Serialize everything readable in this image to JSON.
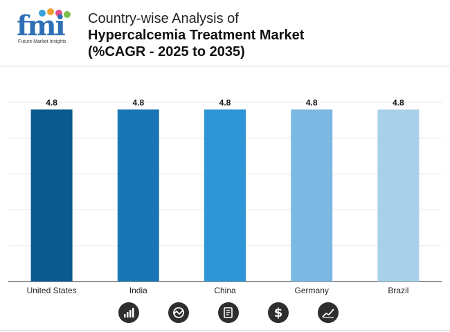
{
  "brand": {
    "logo_text": "fmi",
    "tagline": "Future Market Insights",
    "dot_colors": [
      "#3aa0d8",
      "#f0a030",
      "#e0508a",
      "#7cc04a"
    ]
  },
  "header": {
    "line1": "Country-wise Analysis of",
    "line2": "Hypercalcemia Treatment Market",
    "line3": "(%CAGR - 2025 to 2035)"
  },
  "chart_data": {
    "type": "bar",
    "title": "Country-wise Analysis of Hypercalcemia Treatment Market (%CAGR - 2025 to 2035)",
    "categories": [
      "United States",
      "India",
      "China",
      "Germany",
      "Brazil"
    ],
    "values": [
      4.8,
      4.8,
      4.8,
      4.8,
      4.8
    ],
    "value_labels": [
      "4.8",
      "4.8",
      "4.8",
      "4.8",
      "4.8"
    ],
    "colors": [
      "#0b5a8e",
      "#1a75b4",
      "#2e95d6",
      "#7bb9e2",
      "#a9d0ea"
    ],
    "ylim": [
      0,
      5
    ],
    "xlabel": "",
    "ylabel": "",
    "grid": true,
    "legend": "none"
  },
  "footer_icons": [
    "bar-chart-icon",
    "trend-analysis-icon",
    "document-icon",
    "dollar-icon",
    "growth-chart-icon"
  ]
}
